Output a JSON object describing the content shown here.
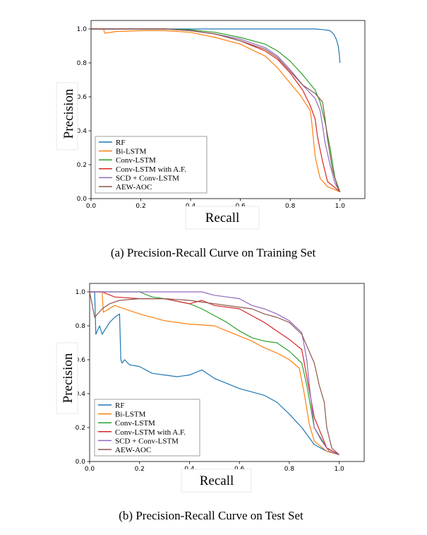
{
  "colors": {
    "RF": "#1f77b4",
    "Bi-LSTM": "#ff7f0e",
    "Conv-LSTM": "#2ca02c",
    "Conv-LSTM with A.F.": "#d62728",
    "SCD + Conv-LSTM": "#9467bd",
    "AEW-AOC": "#8c564b"
  },
  "chart_data": [
    {
      "type": "line",
      "xlabel": "Recall",
      "ylabel": "Precision",
      "caption": "(a)  Precision-Recall Curve on Training Set",
      "xlim": [
        0.0,
        1.1
      ],
      "ylim": [
        0.0,
        1.05
      ],
      "xticks": [
        "0.0",
        "0.2",
        "0.4",
        "0.6",
        "0.8",
        "1.0"
      ],
      "yticks": [
        "0.0",
        "0.2",
        "0.4",
        "0.6",
        "0.8",
        "1.0"
      ],
      "grid": false,
      "legend_position": "lower-left",
      "series": [
        {
          "name": "RF",
          "x": [
            0.0,
            0.3,
            0.6,
            0.9,
            0.94,
            0.96,
            0.975,
            0.985,
            0.993,
            0.998,
            1.0
          ],
          "y": [
            1.0,
            1.0,
            1.0,
            1.0,
            0.995,
            0.99,
            0.97,
            0.94,
            0.9,
            0.84,
            0.8
          ]
        },
        {
          "name": "Bi-LSTM",
          "x": [
            0.0,
            0.05,
            0.055,
            0.1,
            0.2,
            0.3,
            0.4,
            0.5,
            0.6,
            0.7,
            0.75,
            0.8,
            0.84,
            0.88,
            0.885,
            0.9,
            0.92,
            0.95,
            1.0
          ],
          "y": [
            1.0,
            1.0,
            0.975,
            0.985,
            0.99,
            0.99,
            0.98,
            0.95,
            0.91,
            0.84,
            0.77,
            0.68,
            0.61,
            0.52,
            0.47,
            0.25,
            0.12,
            0.07,
            0.04
          ]
        },
        {
          "name": "Conv-LSTM",
          "x": [
            0.0,
            0.3,
            0.4,
            0.5,
            0.6,
            0.7,
            0.75,
            0.8,
            0.85,
            0.9,
            0.92,
            0.94,
            0.96,
            0.98,
            1.0
          ],
          "y": [
            1.0,
            1.0,
            0.995,
            0.98,
            0.95,
            0.91,
            0.87,
            0.81,
            0.73,
            0.64,
            0.57,
            0.45,
            0.3,
            0.12,
            0.04
          ]
        },
        {
          "name": "Conv-LSTM with A.F.",
          "x": [
            0.0,
            0.3,
            0.4,
            0.5,
            0.6,
            0.7,
            0.75,
            0.8,
            0.85,
            0.88,
            0.9,
            0.91,
            0.93,
            0.95,
            1.0
          ],
          "y": [
            1.0,
            1.0,
            0.99,
            0.97,
            0.93,
            0.87,
            0.82,
            0.74,
            0.64,
            0.55,
            0.47,
            0.36,
            0.22,
            0.1,
            0.04
          ]
        },
        {
          "name": "SCD + Conv-LSTM",
          "x": [
            0.0,
            0.3,
            0.4,
            0.5,
            0.6,
            0.7,
            0.75,
            0.8,
            0.85,
            0.9,
            0.92,
            0.93,
            0.94,
            0.96,
            0.98,
            1.0
          ],
          "y": [
            1.0,
            1.0,
            0.99,
            0.97,
            0.94,
            0.89,
            0.84,
            0.76,
            0.67,
            0.59,
            0.52,
            0.43,
            0.33,
            0.2,
            0.09,
            0.04
          ]
        },
        {
          "name": "AEW-AOC",
          "x": [
            0.0,
            0.3,
            0.4,
            0.5,
            0.6,
            0.7,
            0.75,
            0.8,
            0.85,
            0.9,
            0.93,
            0.94,
            0.95,
            0.97,
            0.99,
            1.0
          ],
          "y": [
            1.0,
            1.0,
            0.99,
            0.97,
            0.93,
            0.88,
            0.83,
            0.75,
            0.67,
            0.62,
            0.57,
            0.47,
            0.35,
            0.17,
            0.07,
            0.04
          ]
        }
      ]
    },
    {
      "type": "line",
      "xlabel": "Recall",
      "ylabel": "Precision",
      "caption": "(b)  Precision-Recall Curve on Test Set",
      "xlim": [
        0.0,
        1.1
      ],
      "ylim": [
        0.0,
        1.05
      ],
      "xticks": [
        "0.0",
        "0.2",
        "0.4",
        "0.6",
        "0.8",
        "1.0"
      ],
      "yticks": [
        "0.0",
        "0.2",
        "0.4",
        "0.6",
        "0.8",
        "1.0"
      ],
      "grid": false,
      "legend_position": "lower-left",
      "series": [
        {
          "name": "RF",
          "x": [
            0.0,
            0.02,
            0.025,
            0.04,
            0.05,
            0.08,
            0.1,
            0.12,
            0.125,
            0.13,
            0.14,
            0.16,
            0.2,
            0.25,
            0.3,
            0.35,
            0.4,
            0.45,
            0.47,
            0.5,
            0.55,
            0.6,
            0.65,
            0.7,
            0.75,
            0.8,
            0.85,
            0.9,
            0.95,
            1.0
          ],
          "y": [
            1.0,
            1.0,
            0.75,
            0.8,
            0.75,
            0.82,
            0.85,
            0.87,
            0.6,
            0.58,
            0.6,
            0.57,
            0.56,
            0.52,
            0.51,
            0.5,
            0.51,
            0.54,
            0.52,
            0.49,
            0.46,
            0.43,
            0.41,
            0.39,
            0.35,
            0.28,
            0.2,
            0.1,
            0.06,
            0.04
          ]
        },
        {
          "name": "Bi-LSTM",
          "x": [
            0.0,
            0.05,
            0.055,
            0.1,
            0.2,
            0.3,
            0.4,
            0.5,
            0.55,
            0.6,
            0.65,
            0.7,
            0.75,
            0.8,
            0.84,
            0.86,
            0.88,
            0.9,
            0.95,
            1.0
          ],
          "y": [
            1.0,
            1.0,
            0.88,
            0.92,
            0.87,
            0.83,
            0.81,
            0.8,
            0.77,
            0.74,
            0.71,
            0.67,
            0.64,
            0.6,
            0.55,
            0.4,
            0.22,
            0.12,
            0.06,
            0.04
          ]
        },
        {
          "name": "Conv-LSTM",
          "x": [
            0.0,
            0.2,
            0.25,
            0.3,
            0.4,
            0.45,
            0.5,
            0.55,
            0.6,
            0.65,
            0.7,
            0.75,
            0.8,
            0.85,
            0.87,
            0.9,
            0.95,
            1.0
          ],
          "y": [
            1.0,
            1.0,
            0.97,
            0.96,
            0.93,
            0.9,
            0.86,
            0.82,
            0.77,
            0.73,
            0.71,
            0.7,
            0.65,
            0.58,
            0.45,
            0.2,
            0.08,
            0.04
          ]
        },
        {
          "name": "Conv-LSTM with A.F.",
          "x": [
            0.0,
            0.05,
            0.1,
            0.2,
            0.3,
            0.4,
            0.45,
            0.5,
            0.6,
            0.65,
            0.7,
            0.75,
            0.8,
            0.85,
            0.87,
            0.9,
            0.95,
            1.0
          ],
          "y": [
            1.0,
            1.0,
            0.97,
            0.96,
            0.96,
            0.93,
            0.95,
            0.92,
            0.9,
            0.86,
            0.82,
            0.77,
            0.72,
            0.66,
            0.5,
            0.26,
            0.08,
            0.04
          ]
        },
        {
          "name": "SCD + Conv-LSTM",
          "x": [
            0.0,
            0.45,
            0.5,
            0.55,
            0.6,
            0.65,
            0.7,
            0.75,
            0.8,
            0.85,
            0.87,
            0.88,
            0.9,
            0.93,
            0.96,
            1.0
          ],
          "y": [
            1.0,
            1.0,
            0.98,
            0.97,
            0.96,
            0.92,
            0.9,
            0.87,
            0.83,
            0.76,
            0.6,
            0.45,
            0.2,
            0.12,
            0.06,
            0.04
          ]
        },
        {
          "name": "AEW-AOC",
          "x": [
            0.0,
            0.02,
            0.05,
            0.08,
            0.12,
            0.2,
            0.3,
            0.4,
            0.5,
            0.6,
            0.65,
            0.7,
            0.75,
            0.8,
            0.85,
            0.9,
            0.92,
            0.94,
            0.95,
            0.97,
            1.0
          ],
          "y": [
            1.0,
            0.85,
            0.9,
            0.93,
            0.95,
            0.96,
            0.96,
            0.95,
            0.93,
            0.91,
            0.9,
            0.87,
            0.85,
            0.82,
            0.75,
            0.58,
            0.45,
            0.35,
            0.2,
            0.08,
            0.04
          ]
        }
      ]
    }
  ]
}
